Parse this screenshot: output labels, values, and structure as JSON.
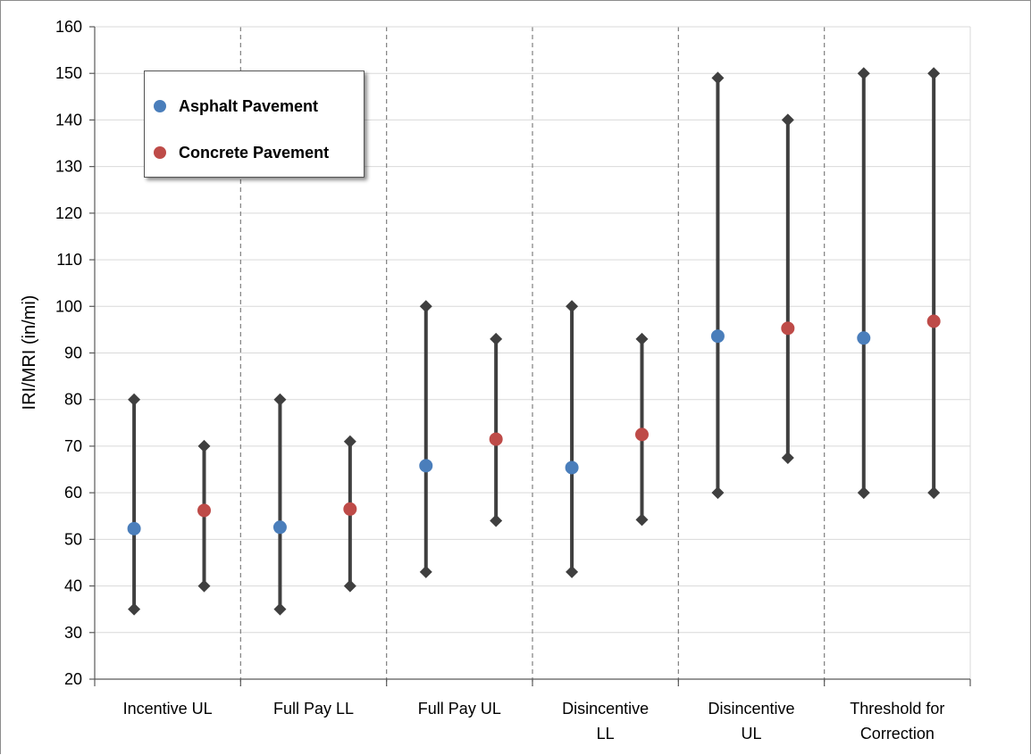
{
  "chart_data": {
    "type": "scatter",
    "subtype": "range-dot",
    "title": "",
    "xlabel": "",
    "ylabel": "IRI/MRI (in/mi)",
    "ylim": [
      20,
      160
    ],
    "yticks": [
      20,
      30,
      40,
      50,
      60,
      70,
      80,
      90,
      100,
      110,
      120,
      130,
      140,
      150,
      160
    ],
    "grid": true,
    "legend_position": "top-left",
    "categories": [
      [
        "Incentive UL"
      ],
      [
        "Full Pay  LL"
      ],
      [
        "Full Pay UL"
      ],
      [
        "Disincentive",
        "LL"
      ],
      [
        "Disincentive",
        "UL"
      ],
      [
        "Threshold for",
        "Correction"
      ]
    ],
    "series": [
      {
        "name": "Asphalt Pavement",
        "color": "#4a7ebb",
        "mean": [
          52.3,
          52.6,
          65.8,
          65.4,
          93.6,
          93.2
        ],
        "min": [
          35,
          35,
          43,
          43,
          60,
          60
        ],
        "max": [
          80,
          80,
          100,
          100,
          149,
          150
        ]
      },
      {
        "name": "Concrete Pavement",
        "color": "#be4b48",
        "mean": [
          56.2,
          56.5,
          71.5,
          72.5,
          95.3,
          96.8
        ],
        "min": [
          40,
          40,
          54,
          54.2,
          67.5,
          60
        ],
        "max": [
          70,
          71,
          93,
          93,
          140,
          150
        ]
      }
    ],
    "range_marker_color": "#3f3f3f"
  }
}
